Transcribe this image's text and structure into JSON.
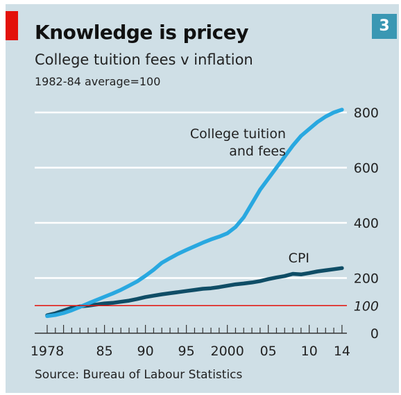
{
  "header": {
    "title": "Knowledge is pricey",
    "subtitle": "College tuition fees v inflation",
    "index_note": "1982-84 average=100",
    "chart_number": "3"
  },
  "footer": {
    "source": "Source: Bureau of Labour Statistics"
  },
  "colors": {
    "panel": "#cfdfe6",
    "tuition": "#29a8e0",
    "cpi": "#0f4d66",
    "baseline": "#e3120b",
    "accent": "#e3120b",
    "badge": "#3a97b3"
  },
  "chart_data": {
    "type": "line",
    "title": "College tuition fees v inflation",
    "xlabel": "",
    "ylabel": "",
    "xlim": [
      1978,
      2014.6
    ],
    "ylim": [
      0,
      800
    ],
    "y_ticks": [
      0,
      200,
      400,
      600,
      800
    ],
    "baseline": {
      "value": 100,
      "label": "100"
    },
    "x_tick_labels": [
      {
        "x": 1978,
        "label": "1978"
      },
      {
        "x": 1985,
        "label": "85"
      },
      {
        "x": 1990,
        "label": "90"
      },
      {
        "x": 1995,
        "label": "95"
      },
      {
        "x": 2000,
        "label": "2000"
      },
      {
        "x": 2005,
        "label": "05"
      },
      {
        "x": 2010,
        "label": "10"
      },
      {
        "x": 2014,
        "label": "14"
      }
    ],
    "grid": true,
    "series": [
      {
        "name": "College tuition and fees",
        "name_lines": [
          "College tuition",
          "and fees"
        ],
        "x": [
          1978,
          1979,
          1980,
          1981,
          1982,
          1983,
          1984,
          1985,
          1986,
          1987,
          1988,
          1989,
          1990,
          1991,
          1992,
          1993,
          1994,
          1995,
          1996,
          1997,
          1998,
          1999,
          2000,
          2001,
          2002,
          2003,
          2004,
          2005,
          2006,
          2007,
          2008,
          2009,
          2010,
          2011,
          2012,
          2013,
          2014
        ],
        "values": [
          62,
          66,
          73,
          83,
          95,
          108,
          120,
          132,
          144,
          157,
          172,
          188,
          208,
          230,
          255,
          272,
          288,
          302,
          315,
          328,
          340,
          350,
          362,
          385,
          420,
          470,
          520,
          560,
          600,
          640,
          680,
          715,
          740,
          765,
          785,
          800,
          810
        ]
      },
      {
        "name": "CPI",
        "name_lines": [
          "CPI"
        ],
        "x": [
          1978,
          1979,
          1980,
          1981,
          1982,
          1983,
          1984,
          1985,
          1986,
          1987,
          1988,
          1989,
          1990,
          1991,
          1992,
          1993,
          1994,
          1995,
          1996,
          1997,
          1998,
          1999,
          2000,
          2001,
          2002,
          2003,
          2004,
          2005,
          2006,
          2007,
          2008,
          2009,
          2010,
          2011,
          2012,
          2013,
          2014
        ],
        "values": [
          65,
          72,
          82,
          92,
          97,
          100,
          104,
          108,
          110,
          114,
          118,
          124,
          131,
          136,
          141,
          145,
          149,
          153,
          157,
          161,
          163,
          167,
          172,
          177,
          180,
          184,
          189,
          196,
          202,
          207,
          215,
          213,
          218,
          224,
          228,
          232,
          236
        ]
      }
    ]
  }
}
